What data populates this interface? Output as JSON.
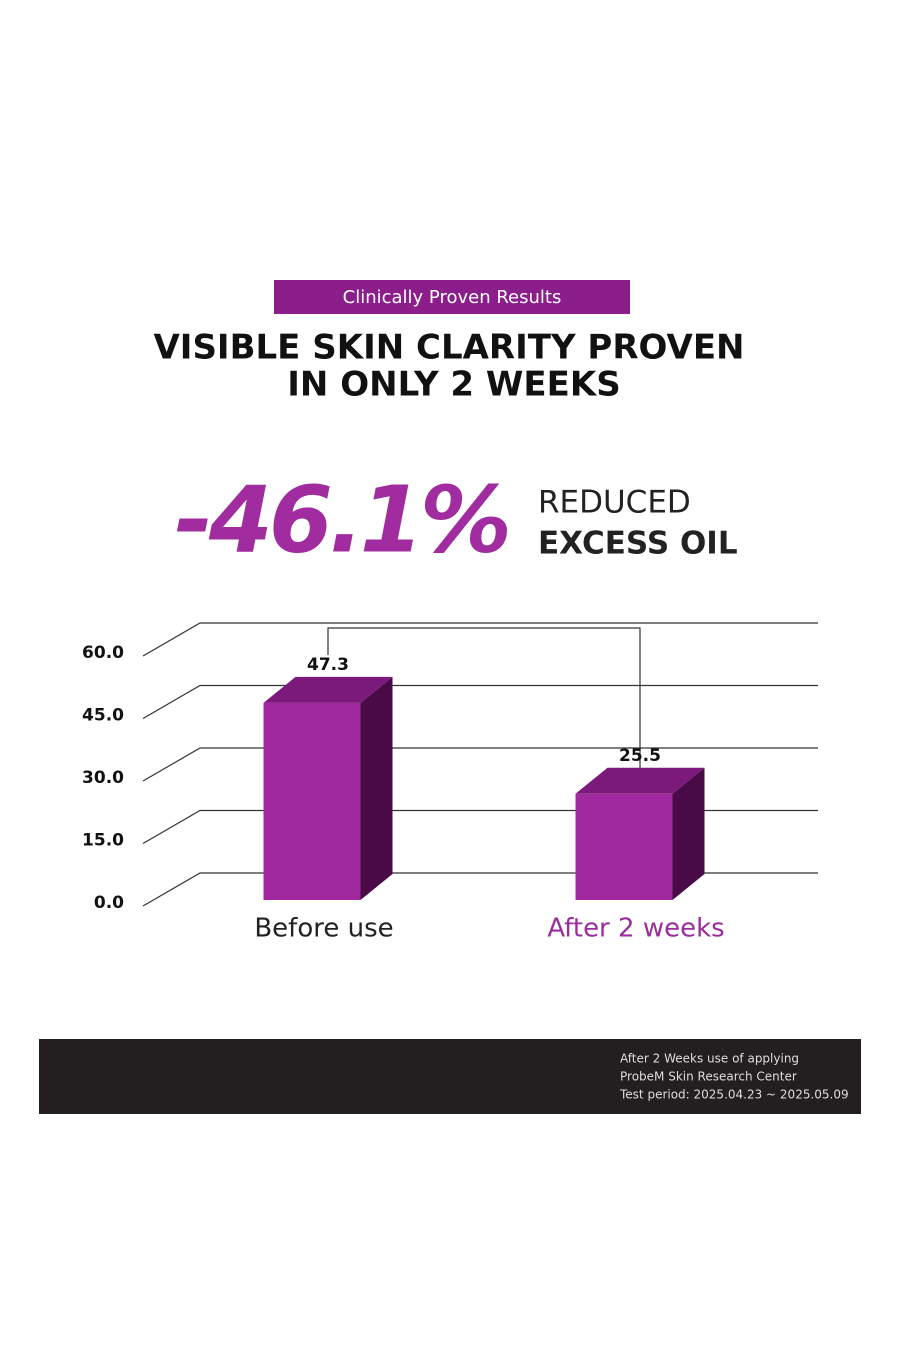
{
  "badge": "Clinically Proven Results",
  "headline": [
    "VISIBLE SKIN CLARITY PROVEN",
    "IN ONLY 2 WEEKS"
  ],
  "highlight": {
    "stat": "-46.1%",
    "text": [
      "REDUCED",
      "EXCESS OIL"
    ]
  },
  "footer": [
    "After 2 Weeks use of applying",
    "ProbeM Skin Research Center",
    "Test period: 2025.04.23 ~ 2025.05.09"
  ],
  "chart_data": {
    "type": "bar",
    "categories": [
      "Before use",
      "After 2 weeks"
    ],
    "category_colors": [
      "#222222",
      "#9b2c9b"
    ],
    "values": [
      47.3,
      25.5
    ],
    "color": "#a1299f",
    "top_color": "#7b1a7b",
    "side_color": "#4a0a48",
    "ylim": [
      0,
      60
    ],
    "yticks": [
      {
        "value": 0,
        "label": "0.0"
      },
      {
        "value": 15,
        "label": "15.0"
      },
      {
        "value": 30,
        "label": "30.0"
      },
      {
        "value": 45,
        "label": "45.0"
      },
      {
        "value": 60,
        "label": "60.0"
      }
    ],
    "grid": true
  }
}
